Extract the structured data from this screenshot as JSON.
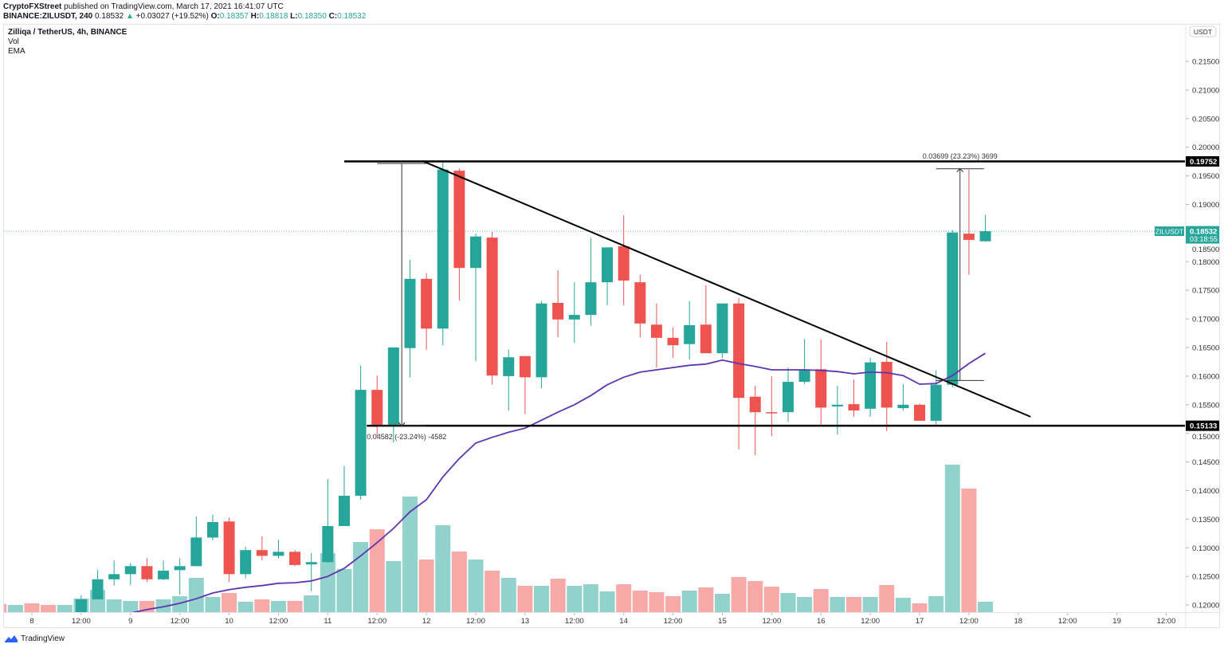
{
  "header": {
    "publisher": "CryptoFXStreet",
    "published_text": "published on TradingView.com, March 17, 2021 16:41:07 UTC",
    "symbol_interval": "BINANCE:ZILUSDT, 240",
    "last": "0.18532",
    "change": "+0.03027 (+19.52%)",
    "o_label": "O:",
    "o": "0.18357",
    "h_label": "H:",
    "h": "0.18818",
    "l_label": "L:",
    "l": "0.18350",
    "c_label": "C:",
    "c": "0.18532"
  },
  "legend": {
    "title": "Zilliqa / TetherUS, 4h, BINANCE",
    "vol": "Vol",
    "ema": "EMA"
  },
  "price_axis": {
    "currency": "USDT",
    "ticks": [
      0.215,
      0.21,
      0.205,
      0.2,
      0.195,
      0.19,
      0.185,
      0.18,
      0.175,
      0.17,
      0.165,
      0.16,
      0.155,
      0.15,
      0.145,
      0.14,
      0.135,
      0.13,
      0.125,
      0.12
    ],
    "last_symbol": "ZILUSDT",
    "last_price": "0.18532",
    "countdown": "03:18:55"
  },
  "time_axis": {
    "labels": [
      {
        "text": "8",
        "t": "2021-03-08 00:00"
      },
      {
        "text": "12:00",
        "t": "2021-03-08 12:00"
      },
      {
        "text": "9",
        "t": "2021-03-09 00:00"
      },
      {
        "text": "12:00",
        "t": "2021-03-09 12:00"
      },
      {
        "text": "10",
        "t": "2021-03-10 00:00"
      },
      {
        "text": "12:00",
        "t": "2021-03-10 12:00"
      },
      {
        "text": "11",
        "t": "2021-03-11 00:00"
      },
      {
        "text": "12:00",
        "t": "2021-03-11 12:00"
      },
      {
        "text": "12",
        "t": "2021-03-12 00:00"
      },
      {
        "text": "12:00",
        "t": "2021-03-12 12:00"
      },
      {
        "text": "13",
        "t": "2021-03-13 00:00"
      },
      {
        "text": "12:00",
        "t": "2021-03-13 12:00"
      },
      {
        "text": "14",
        "t": "2021-03-14 00:00"
      },
      {
        "text": "12:00",
        "t": "2021-03-14 12:00"
      },
      {
        "text": "15",
        "t": "2021-03-15 00:00"
      },
      {
        "text": "12:00",
        "t": "2021-03-15 12:00"
      },
      {
        "text": "16",
        "t": "2021-03-16 00:00"
      },
      {
        "text": "12:00",
        "t": "2021-03-16 12:00"
      },
      {
        "text": "17",
        "t": "2021-03-17 00:00"
      },
      {
        "text": "12:00",
        "t": "2021-03-17 12:00"
      },
      {
        "text": "18",
        "t": "2021-03-18 00:00"
      },
      {
        "text": "12:00",
        "t": "2021-03-18 12:00"
      },
      {
        "text": "19",
        "t": "2021-03-19 00:00"
      },
      {
        "text": "12:00",
        "t": "2021-03-19 12:00"
      }
    ]
  },
  "colors": {
    "up": "#26a69a",
    "down": "#ef5350",
    "vol_up": "#92d2cc",
    "vol_down": "#f7a9a7",
    "ema": "#5e35b1",
    "drawing": "#000000"
  },
  "chart_data": {
    "type": "candlestick",
    "symbol": "ZILUSDT",
    "interval": "4h",
    "ylim": [
      0.1185,
      0.2195
    ],
    "grid": false,
    "pre_volume": [
      {
        "t": "2021-03-07 16:00",
        "dir": "down",
        "v": 10
      },
      {
        "t": "2021-03-07 20:00",
        "dir": "up",
        "v": 9
      },
      {
        "t": "2021-03-08 00:00",
        "dir": "down",
        "v": 11
      },
      {
        "t": "2021-03-08 04:00",
        "dir": "down",
        "v": 9
      },
      {
        "t": "2021-03-08 08:00",
        "dir": "up",
        "v": 9
      }
    ],
    "candles_columns": [
      "t",
      "open",
      "high",
      "low",
      "close",
      "volume_relative",
      "ema"
    ],
    "candles": [
      [
        "2021-03-08 12:00",
        0.1186,
        0.1217,
        0.1186,
        0.121,
        17,
        null
      ],
      [
        "2021-03-08 16:00",
        0.121,
        0.1261,
        0.121,
        0.1245,
        28,
        null
      ],
      [
        "2021-03-08 20:00",
        0.1245,
        0.1278,
        0.1234,
        0.1254,
        16,
        null
      ],
      [
        "2021-03-09 00:00",
        0.1254,
        0.1273,
        0.1235,
        0.1268,
        14,
        0.1186
      ],
      [
        "2021-03-09 04:00",
        0.1268,
        0.1282,
        0.124,
        0.1245,
        14,
        0.1192
      ],
      [
        "2021-03-09 08:00",
        0.1245,
        0.1278,
        0.1243,
        0.126,
        16,
        0.1197
      ],
      [
        "2021-03-09 12:00",
        0.1261,
        0.1282,
        0.1218,
        0.1268,
        20,
        0.1203
      ],
      [
        "2021-03-09 16:00",
        0.1268,
        0.1355,
        0.1268,
        0.1318,
        43,
        0.1211
      ],
      [
        "2021-03-09 20:00",
        0.1318,
        0.1358,
        0.1313,
        0.1345,
        19,
        0.1221
      ],
      [
        "2021-03-10 00:00",
        0.1346,
        0.1353,
        0.124,
        0.1254,
        24,
        0.1227
      ],
      [
        "2021-03-10 04:00",
        0.1254,
        0.1302,
        0.1247,
        0.1296,
        13,
        0.1231
      ],
      [
        "2021-03-10 08:00",
        0.1296,
        0.132,
        0.1278,
        0.1286,
        16,
        0.1234
      ],
      [
        "2021-03-10 12:00",
        0.1286,
        0.1314,
        0.1281,
        0.1293,
        14,
        0.1238
      ],
      [
        "2021-03-10 16:00",
        0.1293,
        0.1296,
        0.1268,
        0.127,
        14,
        0.1239
      ],
      [
        "2021-03-10 20:00",
        0.1271,
        0.1291,
        0.1224,
        0.1275,
        21,
        0.1242
      ],
      [
        "2021-03-11 00:00",
        0.1275,
        0.142,
        0.1274,
        0.1338,
        74,
        0.125
      ],
      [
        "2021-03-11 04:00",
        0.1338,
        0.1443,
        0.1338,
        0.1391,
        54,
        0.1264
      ],
      [
        "2021-03-11 08:00",
        0.1391,
        0.1618,
        0.1384,
        0.1576,
        88,
        0.1286
      ],
      [
        "2021-03-11 12:00",
        0.1576,
        0.1601,
        0.1495,
        0.1515,
        104,
        0.1309
      ],
      [
        "2021-03-11 16:00",
        0.1515,
        0.165,
        0.1484,
        0.165,
        64,
        0.1334
      ],
      [
        "2021-03-11 20:00",
        0.1649,
        0.1803,
        0.1598,
        0.177,
        145,
        0.1363
      ],
      [
        "2021-03-12 00:00",
        0.177,
        0.178,
        0.1646,
        0.1683,
        66,
        0.1384
      ],
      [
        "2021-03-12 04:00",
        0.1683,
        0.1976,
        0.1654,
        0.1961,
        109,
        0.1424
      ],
      [
        "2021-03-12 08:00",
        0.1959,
        0.1963,
        0.1732,
        0.1789,
        76,
        0.1456
      ],
      [
        "2021-03-12 12:00",
        0.1789,
        0.1849,
        0.1626,
        0.1844,
        66,
        0.1483
      ],
      [
        "2021-03-12 16:00",
        0.1842,
        0.1852,
        0.1585,
        0.1601,
        52,
        0.1493
      ],
      [
        "2021-03-12 20:00",
        0.16,
        0.1646,
        0.154,
        0.1633,
        43,
        0.1502
      ],
      [
        "2021-03-13 00:00",
        0.1635,
        0.1635,
        0.1534,
        0.1598,
        33,
        0.1509
      ],
      [
        "2021-03-13 04:00",
        0.1598,
        0.1731,
        0.1579,
        0.1727,
        33,
        0.1523
      ],
      [
        "2021-03-13 08:00",
        0.1728,
        0.1785,
        0.1668,
        0.1699,
        42,
        0.1537
      ],
      [
        "2021-03-13 12:00",
        0.1699,
        0.1764,
        0.1658,
        0.1707,
        33,
        0.155
      ],
      [
        "2021-03-13 16:00",
        0.1707,
        0.1841,
        0.1688,
        0.1764,
        35,
        0.1566
      ],
      [
        "2021-03-13 20:00",
        0.1764,
        0.1825,
        0.1724,
        0.1825,
        26,
        0.1585
      ],
      [
        "2021-03-14 00:00",
        0.1827,
        0.1881,
        0.1724,
        0.1767,
        35,
        0.1598
      ],
      [
        "2021-03-14 04:00",
        0.1764,
        0.1777,
        0.1668,
        0.1692,
        27,
        0.1607
      ],
      [
        "2021-03-14 08:00",
        0.169,
        0.1727,
        0.1615,
        0.1667,
        25,
        0.1611
      ],
      [
        "2021-03-14 12:00",
        0.1667,
        0.1685,
        0.1632,
        0.1654,
        20,
        0.1615
      ],
      [
        "2021-03-14 16:00",
        0.1656,
        0.1731,
        0.1629,
        0.1689,
        27,
        0.1619
      ],
      [
        "2021-03-14 20:00",
        0.169,
        0.1759,
        0.164,
        0.164,
        31,
        0.1621
      ],
      [
        "2021-03-15 00:00",
        0.164,
        0.1727,
        0.1632,
        0.1727,
        23,
        0.1628
      ],
      [
        "2021-03-15 04:00",
        0.1727,
        0.1736,
        0.1472,
        0.1562,
        44,
        0.1622
      ],
      [
        "2021-03-15 08:00",
        0.1564,
        0.1583,
        0.1462,
        0.1537,
        39,
        0.1617
      ],
      [
        "2021-03-15 12:00",
        0.1537,
        0.16,
        0.1495,
        0.1536,
        32,
        0.1611
      ],
      [
        "2021-03-15 16:00",
        0.1537,
        0.1615,
        0.152,
        0.159,
        24,
        0.1611
      ],
      [
        "2021-03-15 20:00",
        0.159,
        0.1665,
        0.1586,
        0.1611,
        19,
        0.1611
      ],
      [
        "2021-03-16 00:00",
        0.1612,
        0.1664,
        0.1512,
        0.1545,
        29,
        0.161
      ],
      [
        "2021-03-16 04:00",
        0.1547,
        0.1583,
        0.1498,
        0.155,
        19,
        0.1608
      ],
      [
        "2021-03-16 08:00",
        0.1551,
        0.1594,
        0.1529,
        0.154,
        19,
        0.1604
      ],
      [
        "2021-03-16 12:00",
        0.1543,
        0.1632,
        0.1529,
        0.1624,
        19,
        0.1607
      ],
      [
        "2021-03-16 16:00",
        0.1625,
        0.166,
        0.1504,
        0.1545,
        34,
        0.1606
      ],
      [
        "2021-03-16 20:00",
        0.1544,
        0.1586,
        0.154,
        0.155,
        18,
        0.1601
      ],
      [
        "2021-03-17 00:00",
        0.155,
        0.1552,
        0.1522,
        0.1522,
        11,
        0.1586
      ],
      [
        "2021-03-17 04:00",
        0.1522,
        0.161,
        0.1512,
        0.1585,
        20,
        0.1587
      ],
      [
        "2021-03-17 08:00",
        0.1585,
        0.1855,
        0.158,
        0.1851,
        185,
        0.1601
      ],
      [
        "2021-03-17 12:00",
        0.1849,
        0.1961,
        0.1777,
        0.1838,
        155,
        0.1622
      ],
      [
        "2021-03-17 16:00",
        0.18357,
        0.18818,
        0.1835,
        0.18532,
        13,
        0.164
      ]
    ],
    "drawings": {
      "resistance": {
        "price": 0.19752,
        "label": "0.19752",
        "from": "2021-03-11 04:00"
      },
      "support": {
        "price": 0.15133,
        "label": "0.15133",
        "from": "2021-03-11 09:30"
      },
      "trendline": {
        "t1": "2021-03-11 23:00",
        "p1": 0.1976,
        "t2": "2021-03-18 03:00",
        "p2": 0.1529
      },
      "measures": [
        {
          "t1": "2021-03-11 12:00",
          "t2": "2021-03-12 00:00",
          "p_from": 0.19715,
          "p_to": 0.15133,
          "label": "0.04582 (-23.24%) -4582"
        },
        {
          "t1": "2021-03-17 04:00",
          "t2": "2021-03-17 15:40",
          "p_from": 0.15924,
          "p_to": 0.19623,
          "label": "0.03699 (23.23%) 3699"
        }
      ]
    }
  },
  "footer": {
    "brand": "TradingView"
  }
}
